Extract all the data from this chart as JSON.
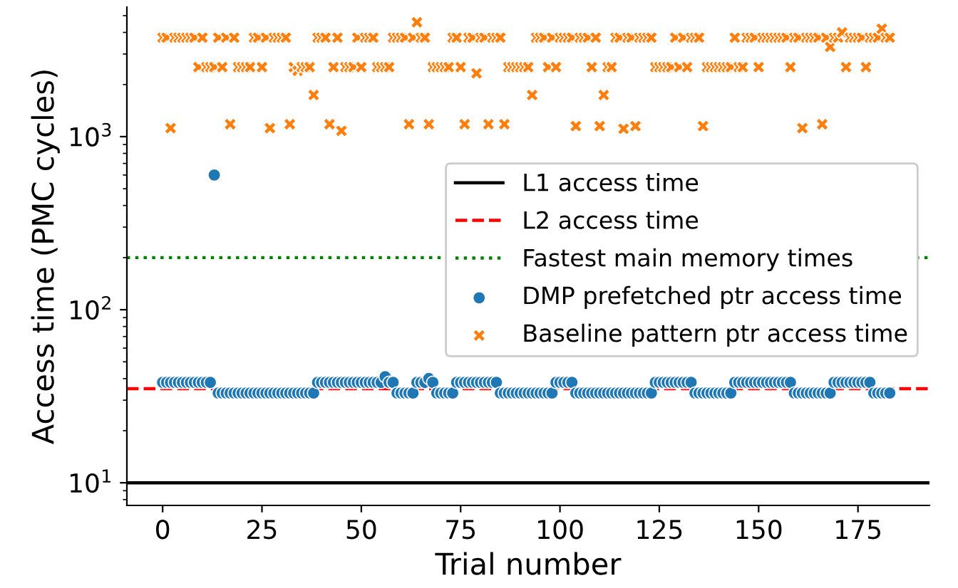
{
  "chart_data": {
    "type": "scatter",
    "xlabel": "Trial number",
    "ylabel": "Access time (PMC cycles)",
    "x": [
      0,
      1,
      2,
      3,
      4,
      5,
      6,
      7,
      8,
      9,
      10,
      11,
      12,
      13,
      14,
      15,
      16,
      17,
      18,
      19,
      20,
      21,
      22,
      23,
      24,
      25,
      26,
      27,
      28,
      29,
      30,
      31,
      32,
      33,
      34,
      35,
      36,
      37,
      38,
      39,
      40,
      41,
      42,
      43,
      44,
      45,
      46,
      47,
      48,
      49,
      50,
      51,
      52,
      53,
      54,
      55,
      56,
      57,
      58,
      59,
      60,
      61,
      62,
      63,
      64,
      65,
      66,
      67,
      68,
      69,
      70,
      71,
      72,
      73,
      74,
      75,
      76,
      77,
      78,
      79,
      80,
      81,
      82,
      83,
      84,
      85,
      86,
      87,
      88,
      89,
      90,
      91,
      92,
      93,
      94,
      95,
      96,
      97,
      98,
      99,
      100,
      101,
      102,
      103,
      104,
      105,
      106,
      107,
      108,
      109,
      110,
      111,
      112,
      113,
      114,
      115,
      116,
      117,
      118,
      119,
      120,
      121,
      122,
      123,
      124,
      125,
      126,
      127,
      128,
      129,
      130,
      131,
      132,
      133,
      134,
      135,
      136,
      137,
      138,
      139,
      140,
      141,
      142,
      143,
      144,
      145,
      146,
      147,
      148,
      149,
      150,
      151,
      152,
      153,
      154,
      155,
      156,
      157,
      158,
      159,
      160,
      161,
      162,
      163,
      164,
      165,
      166,
      167,
      168,
      169,
      170,
      171,
      172,
      173,
      174,
      175,
      176,
      177,
      178,
      179,
      180,
      181,
      182,
      183
    ],
    "ref_lines": [
      {
        "axis": "y",
        "value": 10,
        "label": "L1 access time",
        "color": "#000000",
        "line_style": "solid"
      },
      {
        "axis": "y",
        "value": 35,
        "label": "L2 access time",
        "color": "#ff0000",
        "line_style": "dashed"
      },
      {
        "axis": "y",
        "value": 200,
        "label": "Fastest main memory times",
        "color": "#008000",
        "line_style": "dotted"
      }
    ],
    "series": [
      {
        "name": "DMP prefetched ptr access time",
        "color": "#1f77b4",
        "marker": "circle",
        "values": [
          38,
          38,
          38,
          38,
          38,
          38,
          38,
          38,
          38,
          38,
          38,
          38,
          38,
          600,
          33,
          33,
          33,
          33,
          33,
          33,
          33,
          33,
          33,
          33,
          33,
          33,
          33,
          33,
          33,
          33,
          33,
          33,
          33,
          33,
          33,
          33,
          33,
          33,
          33,
          38,
          38,
          38,
          38,
          38,
          38,
          38,
          38,
          38,
          38,
          38,
          38,
          38,
          38,
          38,
          38,
          38,
          41,
          38,
          38,
          33,
          33,
          33,
          33,
          33,
          38,
          38,
          38,
          40,
          38,
          33,
          33,
          33,
          33,
          33,
          38,
          38,
          38,
          38,
          38,
          38,
          38,
          38,
          38,
          38,
          38,
          33,
          33,
          33,
          33,
          33,
          33,
          33,
          33,
          33,
          33,
          33,
          33,
          33,
          33,
          38,
          38,
          38,
          38,
          38,
          33,
          33,
          33,
          33,
          33,
          33,
          33,
          33,
          33,
          33,
          33,
          33,
          33,
          33,
          33,
          33,
          33,
          33,
          33,
          33,
          38,
          38,
          38,
          38,
          38,
          38,
          38,
          38,
          38,
          38,
          33,
          33,
          33,
          33,
          33,
          33,
          33,
          33,
          33,
          33,
          38,
          38,
          38,
          38,
          38,
          38,
          38,
          38,
          38,
          38,
          38,
          38,
          38,
          38,
          38,
          33,
          33,
          33,
          33,
          33,
          33,
          33,
          33,
          33,
          33,
          38,
          38,
          38,
          38,
          38,
          38,
          38,
          38,
          38,
          38,
          33,
          33,
          33,
          33,
          33
        ]
      },
      {
        "name": "Baseline pattern ptr access time",
        "color": "#ff7f0e",
        "marker": "cross",
        "values": [
          3730,
          3730,
          1120,
          3730,
          3730,
          3730,
          3730,
          3730,
          3730,
          2520,
          3730,
          2520,
          2520,
          2520,
          3730,
          2520,
          3730,
          1180,
          3730,
          2520,
          2520,
          2520,
          2520,
          3730,
          3730,
          2520,
          3730,
          1120,
          3730,
          3730,
          3730,
          3730,
          1180,
          2520,
          2400,
          2520,
          2520,
          2520,
          1740,
          3730,
          3730,
          3730,
          1180,
          2520,
          3730,
          1080,
          2520,
          2520,
          2520,
          3730,
          2520,
          3730,
          3730,
          3730,
          2520,
          2520,
          2520,
          2520,
          3730,
          3730,
          3730,
          3730,
          1180,
          3730,
          4580,
          3730,
          3730,
          1180,
          2520,
          2520,
          2520,
          2520,
          2520,
          3730,
          3730,
          2520,
          1180,
          3730,
          3730,
          2320,
          3730,
          3730,
          1180,
          3730,
          3730,
          3730,
          1180,
          2520,
          2520,
          2520,
          2520,
          2520,
          2520,
          1740,
          3730,
          3730,
          3730,
          2520,
          3730,
          2520,
          3730,
          3730,
          3730,
          3730,
          1150,
          3730,
          3730,
          3730,
          2520,
          3730,
          1150,
          1740,
          2520,
          2520,
          3730,
          3730,
          1110,
          3730,
          3730,
          1150,
          3730,
          3730,
          3730,
          3730,
          2520,
          2520,
          2520,
          2520,
          2520,
          3730,
          2520,
          3730,
          2520,
          3730,
          3730,
          3730,
          1150,
          2520,
          2520,
          2520,
          2520,
          2520,
          2520,
          2520,
          3730,
          2520,
          2520,
          3730,
          3730,
          3730,
          2520,
          3730,
          3730,
          3730,
          3730,
          3730,
          3730,
          3730,
          2520,
          3730,
          3730,
          1120,
          3730,
          3730,
          3730,
          3730,
          1180,
          3730,
          3300,
          3730,
          3730,
          4000,
          2520,
          3730,
          3730,
          3730,
          3730,
          2520,
          3730,
          3730,
          3730,
          4200,
          3730,
          3730
        ]
      }
    ],
    "log": "y",
    "xlim": [
      -9,
      193
    ],
    "xticks": [
      0,
      25,
      50,
      75,
      100,
      125,
      150,
      175
    ],
    "ylim": [
      7.4,
      5600
    ],
    "yticks": [
      {
        "value": 10,
        "label": "10$^{1}$"
      },
      {
        "value": 100,
        "label": "10$^{2}$"
      },
      {
        "value": 1000,
        "label": "10$^{3}$"
      }
    ],
    "grid": false,
    "legend": "right"
  }
}
